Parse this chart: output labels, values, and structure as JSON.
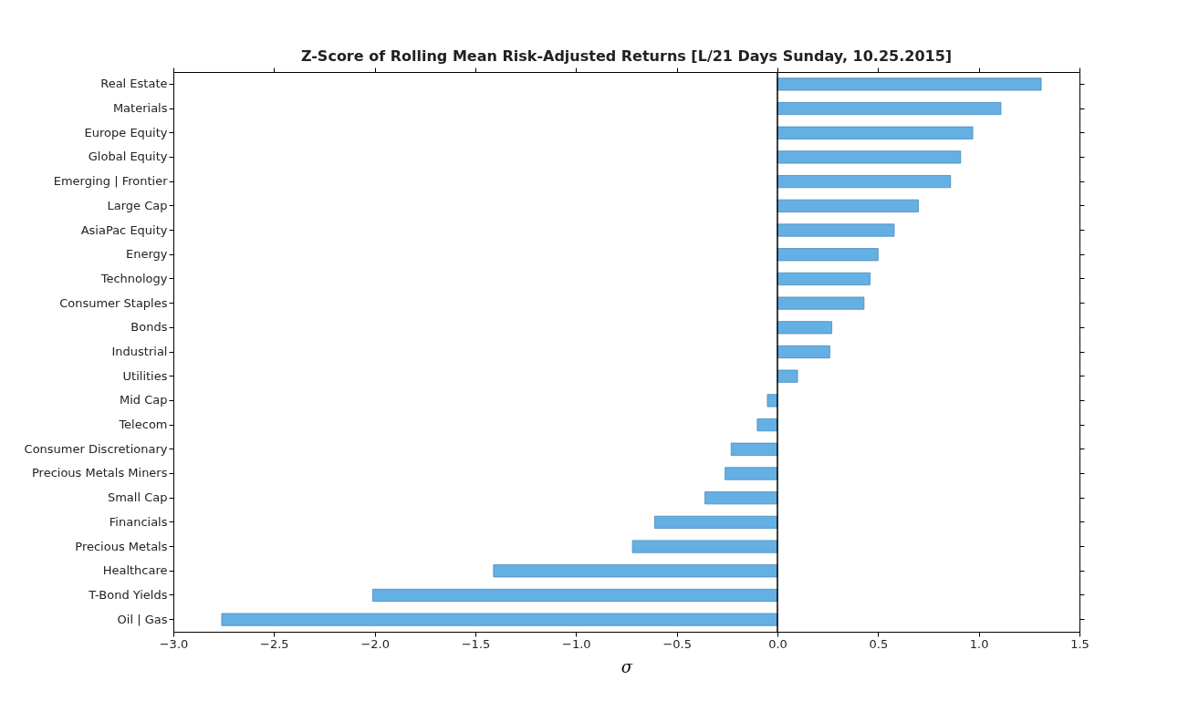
{
  "chart_data": {
    "type": "bar",
    "orientation": "horizontal",
    "title": "Z-Score of Rolling Mean Risk-Adjusted Returns [L/21 Days Sunday, 10.25.2015]",
    "xlabel": "σ",
    "categories": [
      "Real Estate",
      "Materials",
      "Europe Equity",
      "Global Equity",
      "Emerging | Frontier",
      "Large Cap",
      "AsiaPac Equity",
      "Energy",
      "Technology",
      "Consumer Staples",
      "Bonds",
      "Industrial",
      "Utilities",
      "Mid Cap",
      "Telecom",
      "Consumer Discretionary",
      "Precious Metals Miners",
      "Small Cap",
      "Financials",
      "Precious Metals",
      "Healthcare",
      "T-Bond Yields",
      "Oil | Gas"
    ],
    "values": [
      1.31,
      1.11,
      0.97,
      0.91,
      0.86,
      0.7,
      0.58,
      0.5,
      0.46,
      0.43,
      0.27,
      0.26,
      0.1,
      -0.05,
      -0.1,
      -0.23,
      -0.26,
      -0.36,
      -0.61,
      -0.72,
      -1.41,
      -2.01,
      -2.76
    ],
    "color": "#64b0e4",
    "xlim": [
      -3.0,
      1.5
    ],
    "xticks": [
      {
        "value": -3.0,
        "label": "−3.0"
      },
      {
        "value": -2.5,
        "label": "−2.5"
      },
      {
        "value": -2.0,
        "label": "−2.0"
      },
      {
        "value": -1.5,
        "label": "−1.5"
      },
      {
        "value": -1.0,
        "label": "−1.0"
      },
      {
        "value": -0.5,
        "label": "−0.5"
      },
      {
        "value": 0.0,
        "label": "0.0"
      },
      {
        "value": 0.5,
        "label": "0.5"
      },
      {
        "value": 1.0,
        "label": "1.0"
      },
      {
        "value": 1.5,
        "label": "1.5"
      }
    ],
    "ref_lines": [
      {
        "axis": "x",
        "value": 0,
        "color": "#000000"
      }
    ],
    "grid": false
  }
}
